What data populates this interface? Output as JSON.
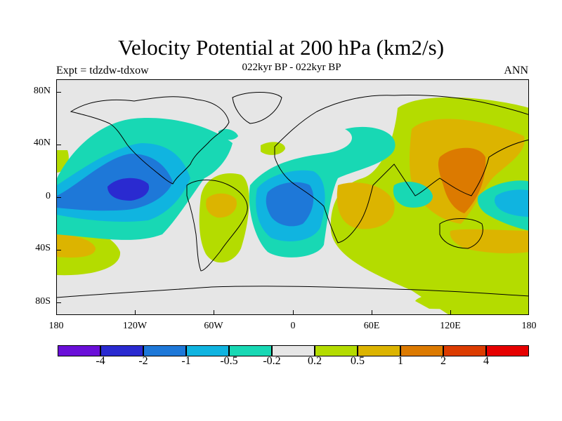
{
  "title": "Velocity Potential at 200 hPa (km2/s)",
  "left_label": "Expt = tdzdw-tdxow",
  "center_label": "022kyr BP - 022kyr BP",
  "right_label": "ANN",
  "y_ticks": [
    "80N",
    "40N",
    "0",
    "40S",
    "80S"
  ],
  "x_ticks": [
    "180",
    "120W",
    "60W",
    "0",
    "60E",
    "120E",
    "180"
  ],
  "colorbar": {
    "colors": [
      "#6a0fd8",
      "#2a2ad0",
      "#1e78d8",
      "#10b4e0",
      "#18d8b4",
      "#e6e6e6",
      "#b4dc00",
      "#dcb400",
      "#dc7a00",
      "#dc3c00",
      "#e60000"
    ],
    "labels": [
      "-4",
      "-2",
      "-1",
      "-0.5",
      "-0.2",
      "0.2",
      "0.5",
      "1",
      "2",
      "4"
    ]
  },
  "colors": {
    "neg_1": "#18d8b4",
    "neg_2": "#10b4e0",
    "neg_3": "#1e78d8",
    "neg_4": "#2a2ad0",
    "pos_1": "#b4dc00",
    "pos_2": "#dcb400",
    "pos_3": "#dc7a00",
    "missing": "#e6e6e6"
  }
}
